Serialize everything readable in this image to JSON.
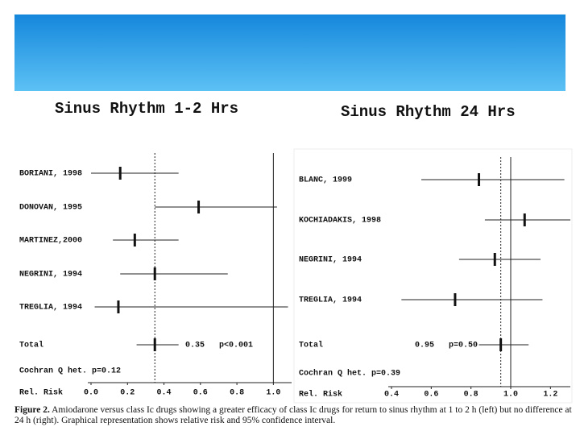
{
  "chart_data": [
    {
      "type": "forest",
      "title": "Sinus Rhythm 1-2 Hrs",
      "categories": [
        "BORIANI, 1998",
        "DONOVAN, 1995",
        "MARTINEZ,2000",
        "NEGRINI, 1994",
        "TREGLIA, 1994",
        "Total"
      ],
      "values": [
        0.16,
        0.59,
        0.24,
        0.35,
        0.15,
        0.35
      ],
      "lower": [
        0.0,
        0.35,
        0.12,
        0.16,
        0.02,
        0.25
      ],
      "upper": [
        0.48,
        1.02,
        0.48,
        0.75,
        1.08,
        0.48
      ],
      "total_annotation": "0.35   p<0.001",
      "heterogeneity": "Cochran Q het. p=0.12",
      "xlabel": "Rel. Risk",
      "xlim": [
        0,
        1.1
      ],
      "xticks": [
        {
          "value": 0,
          "label": "0.0"
        },
        0.2,
        0.4,
        0.6,
        0.8,
        {
          "value": 1,
          "label": "1.0"
        }
      ],
      "reference_line": 1
    },
    {
      "type": "forest",
      "title": "Sinus Rhythm 24 Hrs",
      "categories": [
        "BLANC, 1999",
        "KOCHIADAKIS, 1998",
        "NEGRINI, 1994",
        "TREGLIA, 1994",
        "Total"
      ],
      "values": [
        0.84,
        1.07,
        0.92,
        0.72,
        0.95
      ],
      "lower": [
        0.55,
        0.87,
        0.74,
        0.45,
        0.84
      ],
      "upper": [
        1.27,
        1.3,
        1.15,
        1.16,
        1.09
      ],
      "total_annotation": "0.95   p=0.50",
      "heterogeneity": "Cochran Q het. p=0.39",
      "xlabel": "Rel. Risk",
      "xlim": [
        0.4,
        1.3
      ],
      "xticks": [
        0.4,
        0.6,
        0.8,
        {
          "value": 1,
          "label": "1.0"
        },
        1.2
      ],
      "reference_line": 1
    }
  ],
  "caption_label": "Figure 2.",
  "caption": "Amiodarone versus class Ic drugs showing a greater efficacy of class Ic drugs for return to sinus rhythm at 1 to 2 h (left) but no difference at 24 h (right). Graphical representation shows relative risk and 95% confidence interval."
}
